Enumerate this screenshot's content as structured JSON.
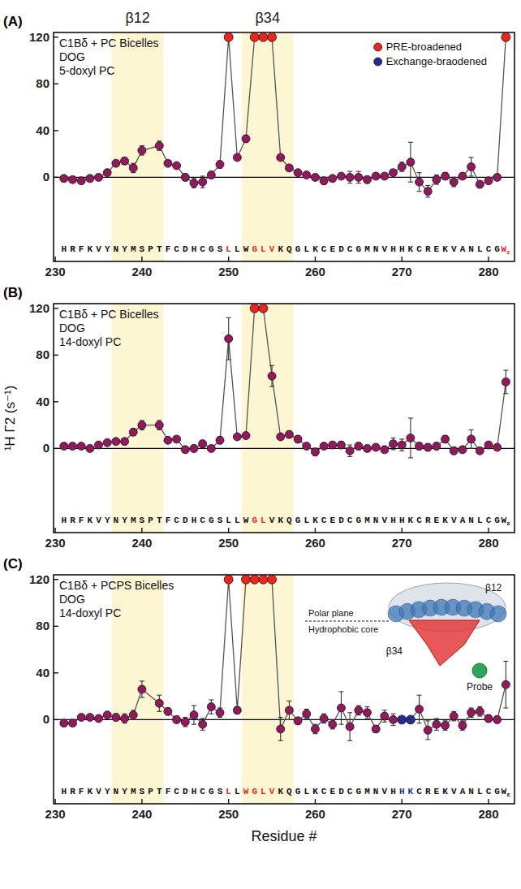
{
  "chart_data": [
    {
      "type": "line",
      "panel_label": "(A)",
      "annotations": [
        "C1Bδ + PC Bicelles",
        "DOG",
        "5-doxyl PC"
      ],
      "x": [
        231,
        232,
        233,
        234,
        235,
        236,
        237,
        238,
        239,
        240,
        242,
        243,
        244,
        245,
        246,
        247,
        248,
        249,
        250,
        251,
        252,
        253,
        254,
        255,
        256,
        257,
        258,
        259,
        260,
        261,
        262,
        263,
        264,
        265,
        266,
        267,
        268,
        269,
        270,
        271,
        272,
        273,
        274,
        275,
        276,
        277,
        278,
        279,
        280,
        281,
        282
      ],
      "xlim": [
        229.8,
        283
      ],
      "xticks": [
        230,
        240,
        250,
        260,
        270,
        280
      ],
      "ylim": [
        -72,
        124
      ],
      "yticks": [
        0,
        40,
        80,
        120
      ],
      "regions": [
        {
          "label": "β12",
          "start": 236.5,
          "end": 242.5
        },
        {
          "label": "β34",
          "start": 251.5,
          "end": 257.5
        }
      ],
      "sequence": [
        "H",
        "R",
        "F",
        "K",
        "V",
        "Y",
        "N",
        "Y",
        "M",
        "S",
        "P",
        "T",
        "F",
        "C",
        "D",
        "H",
        "C",
        "G",
        "S",
        "L",
        "L",
        "W",
        "G",
        "L",
        "V",
        "K",
        "Q",
        "G",
        "L",
        "K",
        "C",
        "E",
        "D",
        "C",
        "G",
        "M",
        "N",
        "V",
        "H",
        "H",
        "K",
        "C",
        "R",
        "E",
        "K",
        "V",
        "A",
        "N",
        "L",
        "C",
        "G",
        "Wε"
      ],
      "sequence_start": 231,
      "legend": "top-right",
      "series": [
        {
          "color": "#8e1b5e",
          "marker": "circle",
          "line_style": "solid",
          "values": [
            -1,
            -2,
            -3,
            -1,
            0,
            4,
            12,
            14,
            8,
            23,
            27,
            12,
            10,
            0,
            -5,
            -4,
            2,
            11,
            null,
            17,
            33,
            null,
            null,
            null,
            17,
            8,
            4,
            2,
            0,
            -3,
            -1,
            1,
            0,
            0,
            -2,
            1,
            1,
            4,
            9,
            13,
            -4,
            -12,
            -2,
            1,
            -4,
            1,
            9,
            -6,
            -3,
            0,
            null
          ],
          "errors": [
            1,
            1,
            1,
            1,
            1,
            1,
            2,
            3,
            4,
            4,
            4,
            2,
            2,
            3,
            4,
            5,
            3,
            3,
            null,
            2,
            3,
            null,
            null,
            null,
            2,
            2,
            2,
            1,
            1,
            3,
            2,
            2,
            5,
            5,
            3,
            1,
            1,
            2,
            4,
            17,
            8,
            5,
            4,
            3,
            4,
            1,
            8,
            3,
            2,
            1,
            null
          ]
        },
        {
          "name": "PRE-broadened",
          "color": "#e8281e",
          "marker": "circle",
          "values": [
            null,
            null,
            null,
            null,
            null,
            null,
            null,
            null,
            null,
            null,
            null,
            null,
            null,
            null,
            null,
            null,
            null,
            null,
            120,
            null,
            null,
            120,
            120,
            120,
            null,
            null,
            null,
            null,
            null,
            null,
            null,
            null,
            null,
            null,
            null,
            null,
            null,
            null,
            null,
            null,
            null,
            null,
            null,
            null,
            null,
            null,
            null,
            null,
            null,
            null,
            120
          ]
        },
        {
          "name": "Exchange-braodened",
          "color": "#1f2f8f",
          "marker": "circle",
          "values": [
            null,
            null,
            null,
            null,
            null,
            null,
            null,
            null,
            null,
            null,
            null,
            null,
            null,
            null,
            null,
            null,
            null,
            null,
            null,
            null,
            null,
            null,
            null,
            null,
            null,
            null,
            null,
            null,
            null,
            null,
            null,
            null,
            null,
            null,
            null,
            null,
            null,
            null,
            null,
            null,
            null,
            null,
            null,
            null,
            null,
            null,
            null,
            null,
            null,
            null,
            null
          ]
        }
      ]
    },
    {
      "type": "line",
      "panel_label": "(B)",
      "annotations": [
        "C1Bδ + PC Bicelles",
        "DOG",
        "14-doxyl PC"
      ],
      "ylabel": "¹H Γ2 (s⁻¹)",
      "x": [
        231,
        232,
        233,
        234,
        235,
        236,
        237,
        238,
        239,
        240,
        242,
        243,
        244,
        245,
        246,
        247,
        248,
        249,
        250,
        251,
        252,
        253,
        254,
        255,
        256,
        257,
        258,
        259,
        260,
        261,
        262,
        263,
        264,
        265,
        266,
        267,
        268,
        269,
        270,
        271,
        272,
        273,
        274,
        275,
        276,
        277,
        278,
        279,
        280,
        281,
        282
      ],
      "xlim": [
        229.8,
        283
      ],
      "xticks": [
        230,
        240,
        250,
        260,
        270,
        280
      ],
      "ylim": [
        -72,
        124
      ],
      "yticks": [
        0,
        40,
        80,
        120
      ],
      "regions": [
        {
          "start": 236.5,
          "end": 242.5
        },
        {
          "start": 251.5,
          "end": 257.5
        }
      ],
      "sequence": [
        "H",
        "R",
        "F",
        "K",
        "V",
        "Y",
        "N",
        "Y",
        "M",
        "S",
        "P",
        "T",
        "F",
        "C",
        "D",
        "H",
        "C",
        "G",
        "S",
        "L",
        "L",
        "W",
        "G",
        "L",
        "V",
        "K",
        "Q",
        "G",
        "L",
        "K",
        "C",
        "E",
        "D",
        "C",
        "G",
        "M",
        "N",
        "V",
        "H",
        "H",
        "K",
        "C",
        "R",
        "E",
        "K",
        "V",
        "A",
        "N",
        "L",
        "C",
        "G",
        "Wε"
      ],
      "sequence_start": 231,
      "series": [
        {
          "color": "#8e1b5e",
          "marker": "circle",
          "line_style": "solid",
          "values": [
            2,
            2,
            2,
            0,
            3,
            5,
            6,
            6,
            14,
            20,
            20,
            7,
            8,
            -1,
            0,
            4,
            0,
            7,
            94,
            10,
            11,
            null,
            null,
            62,
            10,
            12,
            8,
            2,
            -3,
            2,
            3,
            3,
            -2,
            2,
            0,
            1,
            -1,
            4,
            3,
            9,
            2,
            1,
            2,
            8,
            -2,
            -1,
            8,
            -2,
            3,
            1,
            57
          ],
          "errors": [
            1,
            1,
            1,
            1,
            1,
            1,
            2,
            2,
            3,
            4,
            4,
            2,
            2,
            2,
            3,
            3,
            2,
            3,
            18,
            2,
            2,
            null,
            null,
            9,
            2,
            3,
            3,
            2,
            3,
            2,
            2,
            3,
            5,
            3,
            2,
            2,
            2,
            5,
            5,
            17,
            3,
            3,
            3,
            3,
            3,
            2,
            8,
            2,
            2,
            2,
            10
          ]
        },
        {
          "color": "#e8281e",
          "marker": "circle",
          "values": [
            null,
            null,
            null,
            null,
            null,
            null,
            null,
            null,
            null,
            null,
            null,
            null,
            null,
            null,
            null,
            null,
            null,
            null,
            null,
            null,
            null,
            120,
            120,
            null,
            null,
            null,
            null,
            null,
            null,
            null,
            null,
            null,
            null,
            null,
            null,
            null,
            null,
            null,
            null,
            null,
            null,
            null,
            null,
            null,
            null,
            null,
            null,
            null,
            null,
            null,
            null
          ]
        }
      ]
    },
    {
      "type": "line",
      "panel_label": "(C)",
      "annotations": [
        "C1Bδ + PCPS Bicelles",
        "DOG",
        "14-doxyl PC"
      ],
      "xlabel": "Residue #",
      "inset_labels": [
        "Polar plane",
        "Hydrophobic core",
        "β12",
        "β34",
        "Probe"
      ],
      "x": [
        231,
        232,
        233,
        234,
        235,
        236,
        237,
        238,
        239,
        240,
        242,
        243,
        244,
        245,
        246,
        247,
        248,
        249,
        250,
        251,
        252,
        253,
        254,
        255,
        256,
        257,
        258,
        259,
        260,
        261,
        262,
        263,
        264,
        265,
        266,
        267,
        268,
        269,
        270,
        271,
        272,
        273,
        274,
        275,
        276,
        277,
        278,
        279,
        280,
        281,
        282
      ],
      "xlim": [
        229.8,
        283
      ],
      "xticks": [
        230,
        240,
        250,
        260,
        270,
        280
      ],
      "ylim": [
        -72,
        124
      ],
      "yticks": [
        0,
        40,
        80,
        120
      ],
      "regions": [
        {
          "start": 236.5,
          "end": 242.5
        },
        {
          "start": 251.5,
          "end": 257.5
        }
      ],
      "sequence": [
        "H",
        "R",
        "F",
        "K",
        "V",
        "Y",
        "N",
        "Y",
        "M",
        "S",
        "P",
        "T",
        "F",
        "C",
        "D",
        "H",
        "C",
        "G",
        "S",
        "L",
        "L",
        "W",
        "G",
        "L",
        "V",
        "K",
        "Q",
        "G",
        "L",
        "K",
        "C",
        "E",
        "D",
        "C",
        "G",
        "M",
        "N",
        "V",
        "H",
        "H",
        "K",
        "C",
        "R",
        "E",
        "K",
        "V",
        "A",
        "N",
        "L",
        "C",
        "G",
        "Wε"
      ],
      "sequence_start": 231,
      "series": [
        {
          "color": "#8e1b5e",
          "marker": "circle",
          "line_style": "solid",
          "values": [
            -3,
            -3,
            2,
            2,
            1,
            4,
            2,
            1,
            4,
            26,
            14,
            7,
            0,
            -2,
            4,
            -4,
            11,
            6,
            null,
            8,
            null,
            null,
            null,
            null,
            -8,
            8,
            -1,
            5,
            -8,
            1,
            -4,
            10,
            -6,
            8,
            6,
            -8,
            3,
            0,
            null,
            null,
            9,
            -9,
            -4,
            -5,
            3,
            -5,
            6,
            7,
            1,
            0,
            30
          ],
          "errors": [
            2,
            2,
            2,
            2,
            2,
            2,
            3,
            4,
            4,
            7,
            7,
            3,
            3,
            4,
            8,
            5,
            6,
            4,
            null,
            3,
            null,
            null,
            null,
            null,
            10,
            8,
            3,
            4,
            4,
            4,
            4,
            14,
            12,
            4,
            5,
            3,
            5,
            5,
            null,
            null,
            12,
            8,
            5,
            4,
            4,
            4,
            4,
            4,
            3,
            3,
            20
          ]
        },
        {
          "color": "#e8281e",
          "marker": "circle",
          "values": [
            null,
            null,
            null,
            null,
            null,
            null,
            null,
            null,
            null,
            null,
            null,
            null,
            null,
            null,
            null,
            null,
            null,
            null,
            120,
            null,
            120,
            120,
            120,
            120,
            null,
            null,
            null,
            null,
            null,
            null,
            null,
            null,
            null,
            null,
            null,
            null,
            null,
            null,
            null,
            null,
            null,
            null,
            null,
            null,
            null,
            null,
            null,
            null,
            null,
            null,
            null
          ]
        },
        {
          "color": "#1f2f8f",
          "marker": "circle",
          "values": [
            null,
            null,
            null,
            null,
            null,
            null,
            null,
            null,
            null,
            null,
            null,
            null,
            null,
            null,
            null,
            null,
            null,
            null,
            null,
            null,
            null,
            null,
            null,
            null,
            null,
            null,
            null,
            null,
            null,
            null,
            null,
            null,
            null,
            null,
            null,
            null,
            null,
            null,
            0,
            0,
            null,
            null,
            null,
            null,
            null,
            null,
            null,
            null,
            null,
            null,
            null
          ]
        }
      ]
    }
  ]
}
